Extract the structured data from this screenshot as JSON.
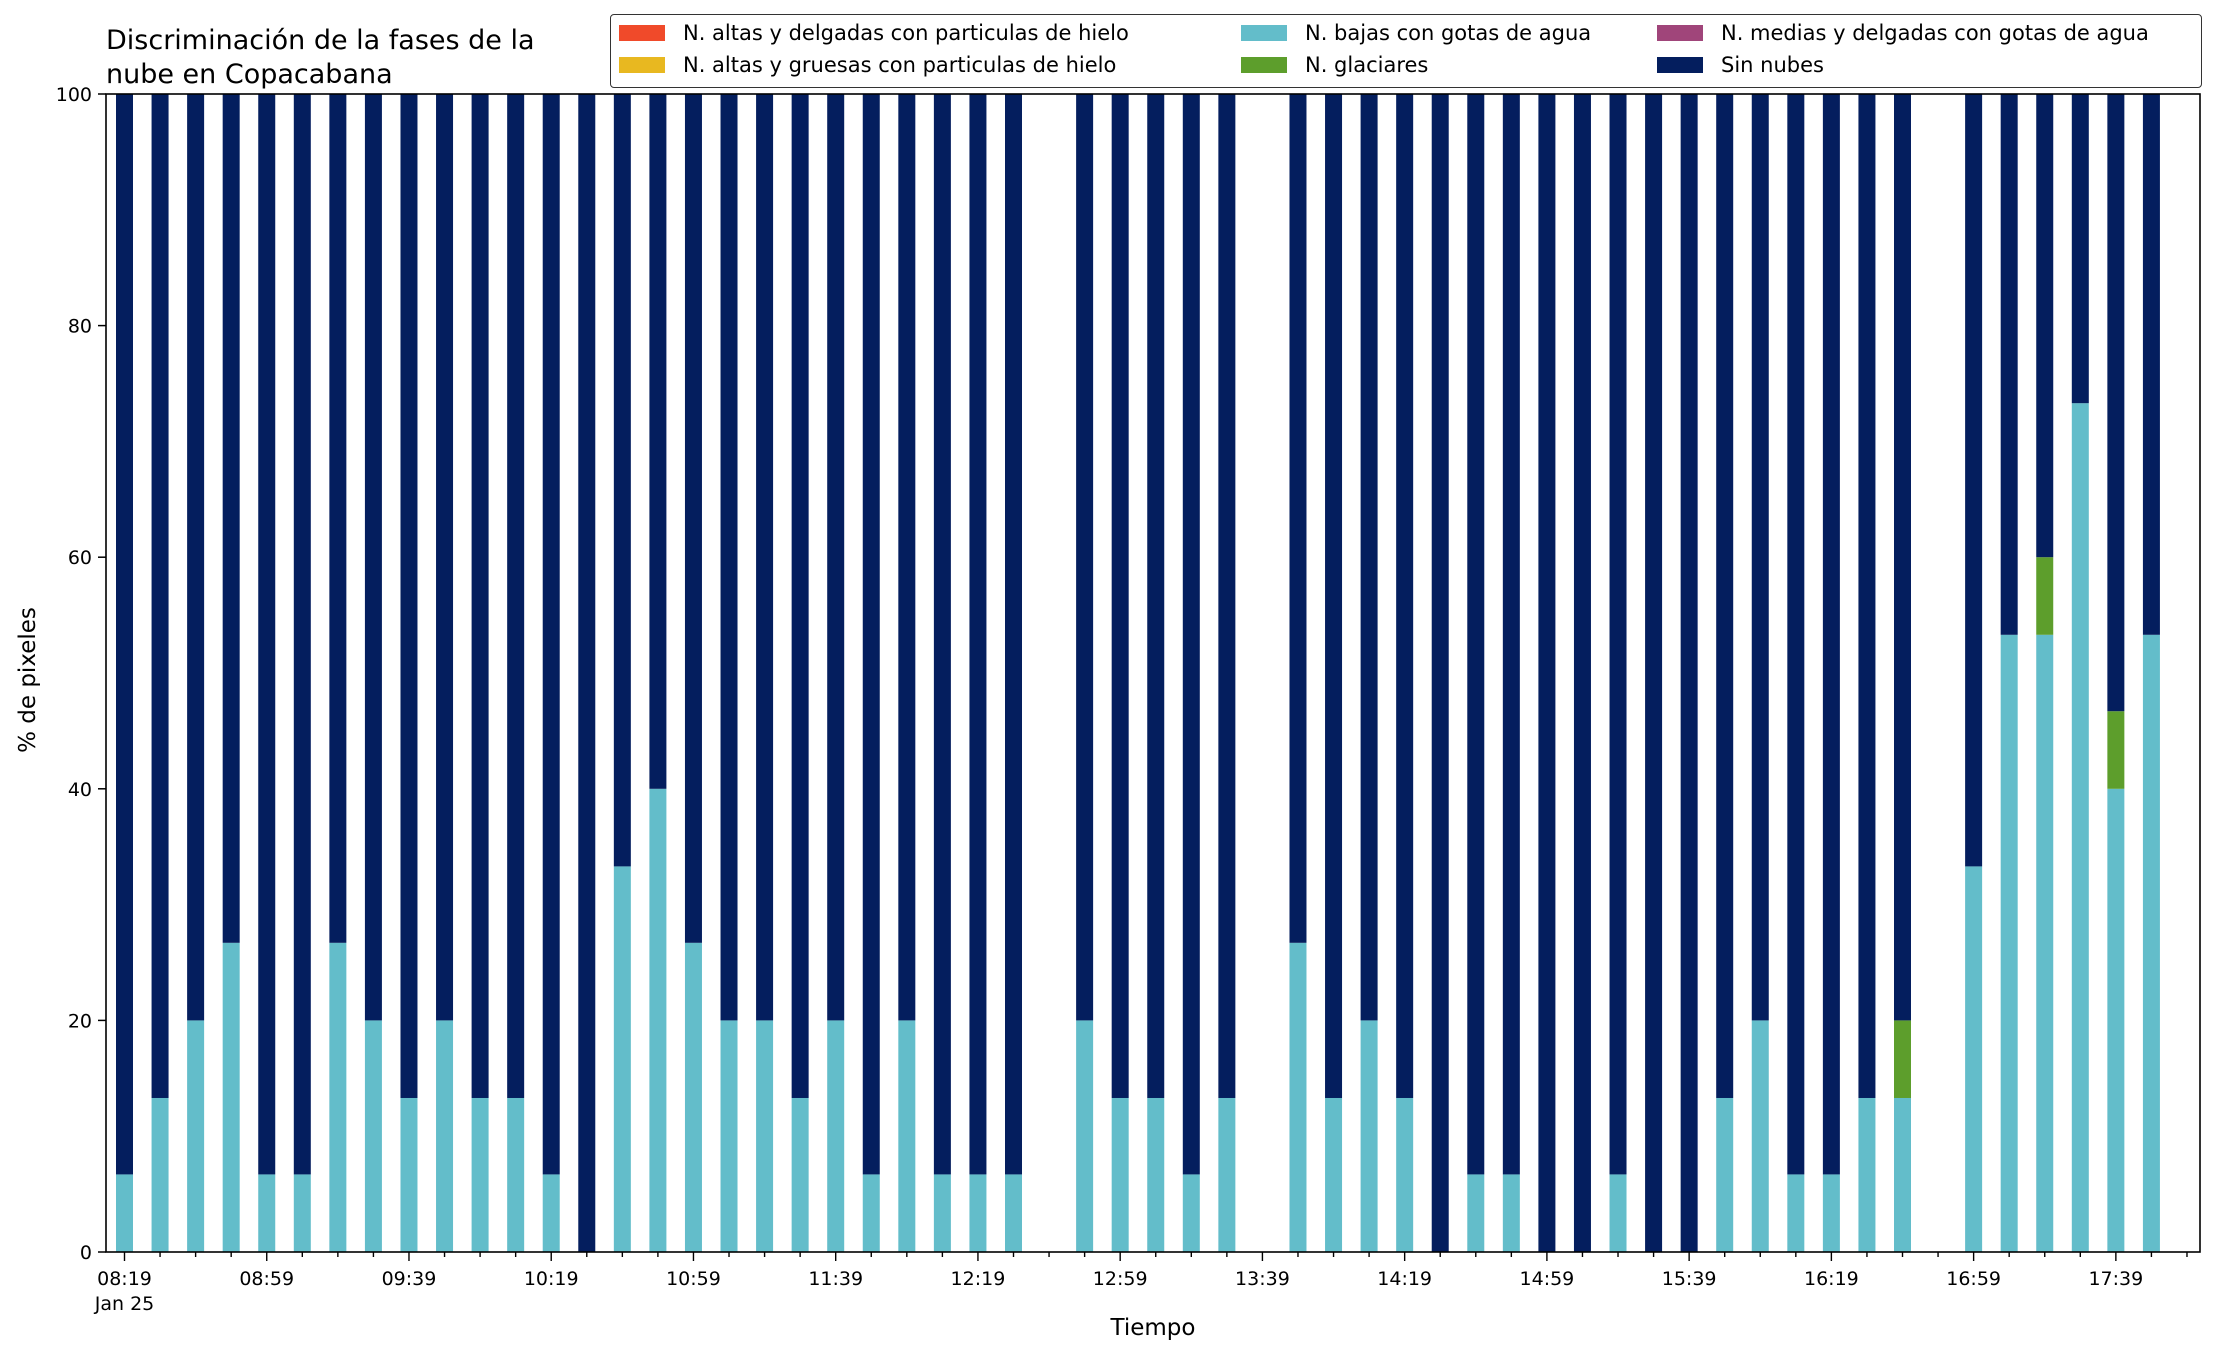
{
  "chart_data": {
    "type": "bar",
    "stacked": true,
    "title": "Discriminación de la fases de la\nnube en Copacabana",
    "xlabel": "Tiempo",
    "ylabel": "% de pixeles",
    "ylim": [
      0,
      100
    ],
    "yticks": [
      "0",
      "20",
      "40",
      "60",
      "80",
      "100"
    ],
    "xtick_labels": [
      "08:19",
      "08:59",
      "09:39",
      "10:19",
      "10:59",
      "11:39",
      "12:19",
      "12:59",
      "13:39",
      "14:19",
      "14:59",
      "15:39",
      "16:19",
      "16:59",
      "17:39"
    ],
    "xtick_sublabel": "Jan 25",
    "x_start": "08:19",
    "x_interval_minutes": 10,
    "legend_position": "top-right",
    "grid": false,
    "categories": [
      "08:19",
      "08:29",
      "08:39",
      "08:49",
      "08:59",
      "09:09",
      "09:19",
      "09:29",
      "09:39",
      "09:49",
      "09:59",
      "10:09",
      "10:19",
      "10:29",
      "10:39",
      "10:49",
      "10:59",
      "11:09",
      "11:19",
      "11:29",
      "11:39",
      "11:49",
      "11:59",
      "12:09",
      "12:19",
      "12:29",
      "12:39",
      "12:49",
      "12:59",
      "13:09",
      "13:19",
      "13:29",
      "13:39",
      "13:49",
      "13:59",
      "14:09",
      "14:19",
      "14:29",
      "14:39",
      "14:49",
      "14:59",
      "15:09",
      "15:19",
      "15:29",
      "15:39",
      "15:49",
      "15:59",
      "16:09",
      "16:19",
      "16:29",
      "16:39",
      "16:49",
      "16:59",
      "17:09",
      "17:19",
      "17:29",
      "17:39",
      "17:49",
      "17:59"
    ],
    "series": [
      {
        "name": "N. altas y delgadas con particulas de hielo",
        "color": "#f04a2a",
        "values": [
          0,
          0,
          0,
          0,
          0,
          0,
          0,
          0,
          0,
          0,
          0,
          0,
          0,
          0,
          0,
          0,
          0,
          0,
          0,
          0,
          0,
          0,
          0,
          0,
          0,
          0,
          null,
          0,
          0,
          0,
          0,
          0,
          null,
          0,
          0,
          0,
          0,
          0,
          0,
          0,
          0,
          0,
          0,
          0,
          0,
          0,
          0,
          0,
          0,
          0,
          0,
          0,
          null,
          0,
          0,
          0,
          0,
          0,
          0
        ]
      },
      {
        "name": "N. altas y gruesas con particulas de hielo",
        "color": "#e8b820",
        "values": [
          0,
          0,
          0,
          0,
          0,
          0,
          0,
          0,
          0,
          0,
          0,
          0,
          0,
          0,
          0,
          0,
          0,
          0,
          0,
          0,
          0,
          0,
          0,
          0,
          0,
          0,
          null,
          0,
          0,
          0,
          0,
          0,
          null,
          0,
          0,
          0,
          0,
          0,
          0,
          0,
          0,
          0,
          0,
          0,
          0,
          0,
          0,
          0,
          0,
          0,
          0,
          0,
          null,
          0,
          0,
          0,
          0,
          0,
          0
        ]
      },
      {
        "name": "N. bajas con gotas de agua",
        "color": "#63bdca",
        "values": [
          6.7,
          13.3,
          20,
          26.7,
          6.7,
          6.7,
          26.7,
          20,
          13.3,
          20,
          13.3,
          13.3,
          6.7,
          0,
          33.3,
          40,
          26.7,
          20,
          20,
          13.3,
          20,
          6.7,
          20,
          6.7,
          6.7,
          6.7,
          null,
          20,
          13.3,
          13.3,
          6.7,
          13.3,
          null,
          26.7,
          13.3,
          20,
          13.3,
          0,
          6.7,
          6.7,
          0,
          0,
          6.7,
          0,
          0,
          13.3,
          20,
          6.7,
          6.7,
          13.3,
          13.3,
          null,
          33.3,
          53.3,
          53.3,
          73.3,
          40,
          53.3,
          null
        ]
      },
      {
        "name": "N. glaciares",
        "color": "#5d9e2c",
        "values": [
          0,
          0,
          0,
          0,
          0,
          0,
          0,
          0,
          0,
          0,
          0,
          0,
          0,
          0,
          0,
          0,
          0,
          0,
          0,
          0,
          0,
          0,
          0,
          0,
          0,
          0,
          null,
          0,
          0,
          0,
          0,
          0,
          null,
          0,
          0,
          0,
          0,
          0,
          0,
          0,
          0,
          0,
          0,
          0,
          0,
          0,
          0,
          0,
          0,
          0,
          6.7,
          null,
          0,
          0,
          6.7,
          0,
          6.7,
          0,
          null
        ]
      },
      {
        "name": "N. medias y delgadas con gotas de agua",
        "color": "#a0457a",
        "values": [
          0,
          0,
          0,
          0,
          0,
          0,
          0,
          0,
          0,
          0,
          0,
          0,
          0,
          0,
          0,
          0,
          0,
          0,
          0,
          0,
          0,
          0,
          0,
          0,
          0,
          0,
          null,
          0,
          0,
          0,
          0,
          0,
          null,
          0,
          0,
          0,
          0,
          0,
          0,
          0,
          0,
          0,
          0,
          0,
          0,
          0,
          0,
          0,
          0,
          0,
          0,
          null,
          0,
          0,
          0,
          0,
          0,
          0,
          null
        ]
      },
      {
        "name": "Sin nubes",
        "color": "#041e5e",
        "values": [
          93.3,
          86.7,
          80,
          73.3,
          93.3,
          93.3,
          73.3,
          80,
          86.7,
          80,
          86.7,
          86.7,
          93.3,
          100,
          66.7,
          60,
          73.3,
          80,
          80,
          86.7,
          80,
          93.3,
          80,
          93.3,
          93.3,
          93.3,
          null,
          80,
          86.7,
          86.7,
          93.3,
          86.7,
          null,
          73.3,
          86.7,
          80,
          86.7,
          100,
          93.3,
          93.3,
          100,
          100,
          93.3,
          100,
          100,
          86.7,
          80,
          93.3,
          93.3,
          86.7,
          80,
          null,
          66.7,
          46.7,
          40,
          26.7,
          53.3,
          46.7,
          null
        ]
      }
    ]
  }
}
